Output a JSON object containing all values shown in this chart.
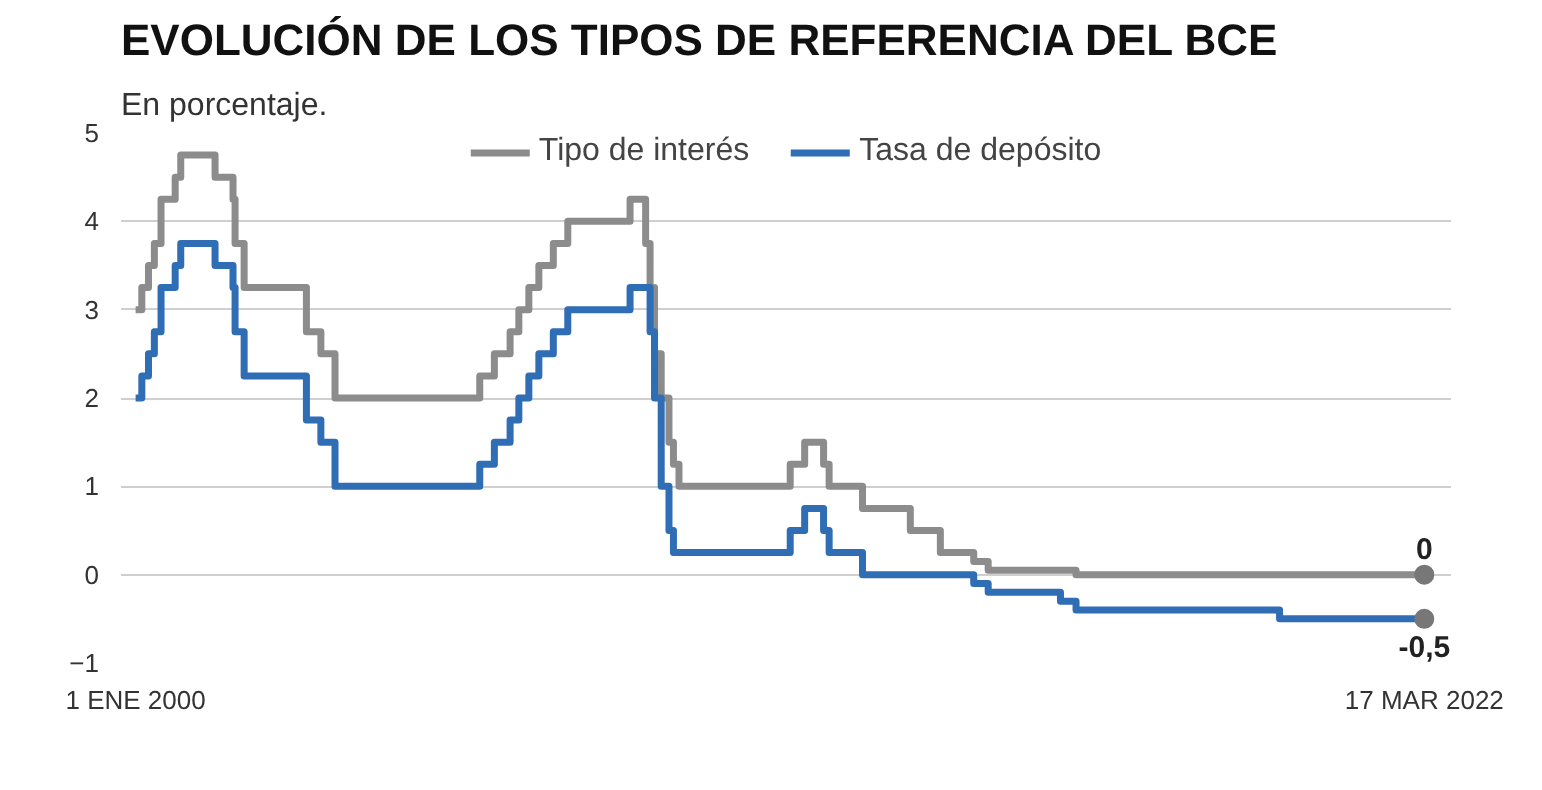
{
  "chart_data": {
    "type": "step",
    "title": "EVOLUCIÓN DE LOS TIPOS DE REFERENCIA DEL BCE",
    "subtitle": "En porcentaje.",
    "grid": "y",
    "legend": "top",
    "line_style": "solid",
    "marker": "none",
    "xlim": [
      "1999-10-01",
      "2022-09-01"
    ],
    "ylim": [
      -1,
      5
    ],
    "xticks": [
      {
        "value": "2000-01-01",
        "label": "1 ENE 2000"
      },
      {
        "value": "2022-03-17",
        "label": "17 MAR 2022"
      }
    ],
    "yticks": [
      -1,
      0,
      1,
      2,
      3,
      4,
      5
    ],
    "series": [
      {
        "name": "Tipo de interés",
        "color": "#8c8c8c",
        "x": [
          "2000-01-01",
          "2000-02-09",
          "2000-03-22",
          "2000-04-28",
          "2000-06-09",
          "2000-09-06",
          "2000-10-11",
          "2001-05-15",
          "2001-09-05",
          "2001-09-18",
          "2001-11-14",
          "2002-12-11",
          "2003-03-12",
          "2003-06-09",
          "2005-12-06",
          "2006-03-08",
          "2006-06-15",
          "2006-08-09",
          "2006-10-11",
          "2006-12-13",
          "2007-03-14",
          "2007-06-13",
          "2008-07-09",
          "2008-10-15",
          "2008-11-12",
          "2008-12-10",
          "2009-01-21",
          "2009-03-11",
          "2009-04-08",
          "2009-05-13",
          "2011-04-13",
          "2011-07-13",
          "2011-11-09",
          "2011-12-14",
          "2012-07-11",
          "2013-05-08",
          "2013-11-13",
          "2014-06-11",
          "2014-09-10",
          "2016-03-16",
          "2022-03-17"
        ],
        "values": [
          3.0,
          3.25,
          3.5,
          3.75,
          4.25,
          4.5,
          4.75,
          4.5,
          4.25,
          3.75,
          3.25,
          2.75,
          2.5,
          2.0,
          2.25,
          2.5,
          2.75,
          3.0,
          3.25,
          3.5,
          3.75,
          4.0,
          4.25,
          3.75,
          3.25,
          2.5,
          2.0,
          1.5,
          1.25,
          1.0,
          1.25,
          1.5,
          1.25,
          1.0,
          0.75,
          0.5,
          0.25,
          0.15,
          0.05,
          0.0,
          0.0
        ]
      },
      {
        "name": "Tasa de depósito",
        "color": "#2f6db5",
        "x": [
          "2000-01-01",
          "2000-02-09",
          "2000-03-22",
          "2000-04-28",
          "2000-06-09",
          "2000-09-06",
          "2000-10-11",
          "2001-05-15",
          "2001-09-05",
          "2001-09-18",
          "2001-11-14",
          "2002-12-11",
          "2003-03-12",
          "2003-06-09",
          "2005-12-06",
          "2006-03-08",
          "2006-06-15",
          "2006-08-09",
          "2006-10-11",
          "2006-12-13",
          "2007-03-14",
          "2007-06-13",
          "2008-07-09",
          "2008-11-12",
          "2008-12-10",
          "2009-01-21",
          "2009-03-11",
          "2009-04-08",
          "2011-04-13",
          "2011-07-13",
          "2011-11-09",
          "2011-12-14",
          "2012-07-11",
          "2014-06-11",
          "2014-09-10",
          "2015-12-09",
          "2016-03-16",
          "2019-09-18",
          "2022-03-17"
        ],
        "values": [
          2.0,
          2.25,
          2.5,
          2.75,
          3.25,
          3.5,
          3.75,
          3.5,
          3.25,
          2.75,
          2.25,
          1.75,
          1.5,
          1.0,
          1.25,
          1.5,
          1.75,
          2.0,
          2.25,
          2.5,
          2.75,
          3.0,
          3.25,
          2.75,
          2.0,
          1.0,
          0.5,
          0.25,
          0.5,
          0.75,
          0.5,
          0.25,
          0.0,
          -0.1,
          -0.2,
          -0.3,
          -0.4,
          -0.5,
          -0.5
        ]
      }
    ],
    "annotations": [
      {
        "text": "0",
        "x": "2022-03-17",
        "y": 0
      },
      {
        "text": "-0,5",
        "x": "2022-03-17",
        "y": -0.5
      }
    ]
  }
}
